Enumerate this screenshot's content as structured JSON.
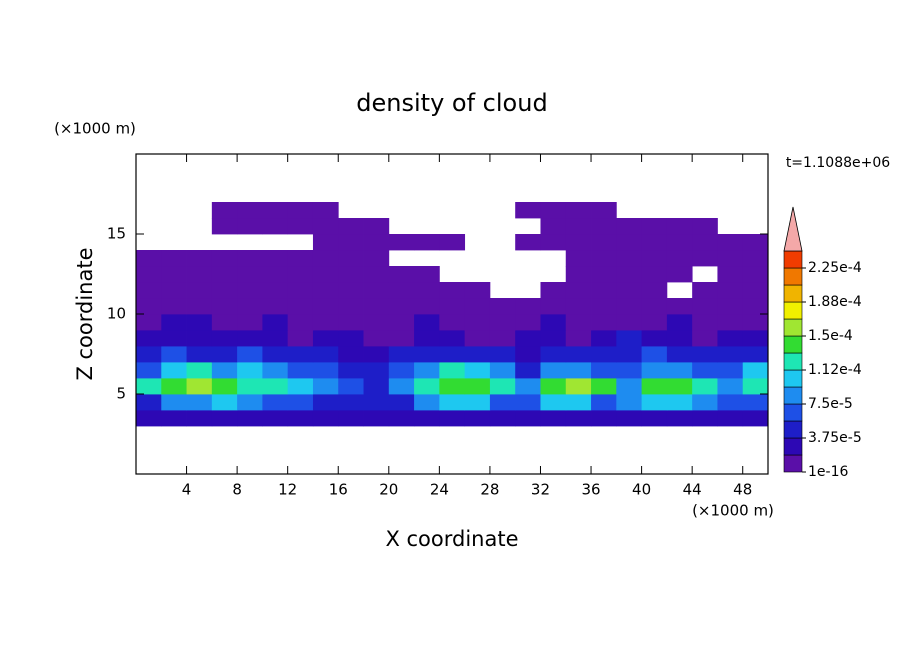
{
  "chart_data": {
    "type": "contour",
    "title": "density of cloud",
    "xlabel": "X coordinate",
    "ylabel": "Z coordinate",
    "xunit": "(×1000 m)",
    "yunit": "(×1000 m)",
    "annotation": "t=1.1088e+06",
    "xlim": [
      0,
      50
    ],
    "ylim": [
      0,
      20
    ],
    "xticks": [
      4,
      8,
      12,
      16,
      20,
      24,
      28,
      32,
      36,
      40,
      44,
      48
    ],
    "yticks": [
      5,
      10,
      15
    ],
    "x": [
      1,
      3,
      5,
      7,
      9,
      11,
      13,
      15,
      17,
      19,
      21,
      23,
      25,
      27,
      29,
      31,
      33,
      35,
      37,
      39,
      41,
      43,
      45,
      47,
      49
    ],
    "y": [
      3.5,
      4.5,
      5.5,
      6.5,
      7.5,
      8.5,
      9.5,
      10.5,
      11.5,
      12.5,
      13.5,
      14.5,
      15.5,
      16.5
    ],
    "values": [
      [
        2.5e-05,
        2.5e-05,
        2.5e-05,
        2.5e-05,
        2.5e-05,
        2.5e-05,
        2.5e-05,
        2.5e-05,
        2.5e-05,
        2.5e-05,
        2.5e-05,
        2.5e-05,
        2.5e-05,
        2.5e-05,
        2.5e-05,
        2.5e-05,
        2.5e-05,
        2.5e-05,
        2.5e-05,
        2.5e-05,
        2.5e-05,
        2.5e-05,
        2.5e-05,
        2.5e-05,
        2.5e-05
      ],
      [
        4.5e-05,
        8e-05,
        8e-05,
        0.0001,
        8e-05,
        6e-05,
        6e-05,
        4.5e-05,
        4.5e-05,
        4.5e-05,
        4.5e-05,
        8e-05,
        0.0001,
        0.0001,
        6e-05,
        6e-05,
        0.0001,
        0.0001,
        6e-05,
        8e-05,
        0.0001,
        0.0001,
        8e-05,
        6e-05,
        6e-05
      ],
      [
        0.00012,
        0.000135,
        0.00016,
        0.000135,
        0.00012,
        0.00012,
        0.0001,
        8e-05,
        6e-05,
        4.5e-05,
        8e-05,
        0.00012,
        0.000135,
        0.000135,
        0.00012,
        8e-05,
        0.000135,
        0.00016,
        0.000135,
        8e-05,
        0.000135,
        0.000135,
        0.00012,
        8e-05,
        0.00012
      ],
      [
        6e-05,
        0.0001,
        0.00012,
        8e-05,
        0.0001,
        8e-05,
        6e-05,
        6e-05,
        4.5e-05,
        4.5e-05,
        6e-05,
        8e-05,
        0.00012,
        0.0001,
        8e-05,
        4.5e-05,
        8e-05,
        8e-05,
        6e-05,
        6e-05,
        8e-05,
        8e-05,
        6e-05,
        6e-05,
        0.0001
      ],
      [
        4.5e-05,
        6e-05,
        4.5e-05,
        4.5e-05,
        6e-05,
        4.5e-05,
        4.5e-05,
        4.5e-05,
        2.5e-05,
        2.5e-05,
        4.5e-05,
        4.5e-05,
        4.5e-05,
        4.5e-05,
        4.5e-05,
        2.5e-05,
        4.5e-05,
        4.5e-05,
        4.5e-05,
        4.5e-05,
        6e-05,
        4.5e-05,
        4.5e-05,
        4.5e-05,
        4.5e-05
      ],
      [
        2.5e-05,
        2.5e-05,
        2.5e-05,
        2.5e-05,
        2.5e-05,
        2.5e-05,
        1e-05,
        2.5e-05,
        2.5e-05,
        1e-05,
        1e-05,
        2.5e-05,
        2.5e-05,
        1e-05,
        1e-05,
        2.5e-05,
        2.5e-05,
        1e-05,
        2.5e-05,
        4.5e-05,
        2.5e-05,
        2.5e-05,
        1e-05,
        2.5e-05,
        2.5e-05
      ],
      [
        1e-05,
        2.5e-05,
        2.5e-05,
        1e-05,
        1e-05,
        2.5e-05,
        1e-05,
        1e-05,
        1e-05,
        1e-05,
        1e-05,
        2.5e-05,
        1e-05,
        1e-05,
        1e-05,
        1e-05,
        2.5e-05,
        1e-05,
        1e-05,
        1e-05,
        1e-05,
        2.5e-05,
        1e-05,
        1e-05,
        1e-05
      ],
      [
        1e-05,
        1e-05,
        1e-05,
        1e-05,
        1e-05,
        1e-05,
        1e-05,
        1e-05,
        1e-05,
        1e-05,
        1e-05,
        1e-05,
        1e-05,
        1e-05,
        1e-05,
        1e-05,
        1e-05,
        1e-05,
        1e-05,
        1e-05,
        1e-05,
        1e-05,
        1e-05,
        1e-05,
        1e-05
      ],
      [
        1e-05,
        1e-05,
        1e-05,
        1e-05,
        1e-05,
        1e-05,
        1e-05,
        1e-05,
        1e-05,
        1e-05,
        1e-05,
        1e-05,
        1e-05,
        1e-05,
        null,
        null,
        1e-05,
        1e-05,
        1e-05,
        1e-05,
        1e-05,
        null,
        1e-05,
        1e-05,
        1e-05
      ],
      [
        1e-05,
        1e-05,
        1e-05,
        1e-05,
        1e-05,
        1e-05,
        1e-05,
        1e-05,
        1e-05,
        1e-05,
        1e-05,
        1e-05,
        null,
        null,
        null,
        null,
        null,
        1e-05,
        1e-05,
        1e-05,
        1e-05,
        1e-05,
        null,
        1e-05,
        1e-05
      ],
      [
        1e-05,
        1e-05,
        1e-05,
        1e-05,
        1e-05,
        1e-05,
        1e-05,
        1e-05,
        1e-05,
        1e-05,
        null,
        null,
        null,
        null,
        null,
        null,
        null,
        1e-05,
        1e-05,
        1e-05,
        1e-05,
        1e-05,
        1e-05,
        1e-05,
        1e-05
      ],
      [
        null,
        null,
        null,
        null,
        null,
        null,
        null,
        1e-05,
        1e-05,
        1e-05,
        1e-05,
        1e-05,
        1e-05,
        null,
        null,
        1e-05,
        1e-05,
        1e-05,
        1e-05,
        1e-05,
        1e-05,
        1e-05,
        1e-05,
        1e-05,
        1e-05
      ],
      [
        null,
        null,
        null,
        1e-05,
        1e-05,
        1e-05,
        1e-05,
        1e-05,
        1e-05,
        1e-05,
        null,
        null,
        null,
        null,
        null,
        null,
        1e-05,
        1e-05,
        1e-05,
        1e-05,
        1e-05,
        1e-05,
        1e-05,
        null,
        null
      ],
      [
        null,
        null,
        null,
        1e-05,
        1e-05,
        1e-05,
        1e-05,
        1e-05,
        null,
        null,
        null,
        null,
        null,
        null,
        null,
        1e-05,
        1e-05,
        1e-05,
        1e-05,
        null,
        null,
        null,
        null,
        null,
        null
      ]
    ],
    "levels": [
      1e-16,
      1.875e-05,
      3.75e-05,
      5.625e-05,
      7.5e-05,
      9.375e-05,
      0.0001125,
      0.00013125,
      0.00015,
      0.00016875,
      0.0001875,
      0.00020625,
      0.000225
    ],
    "colors": [
      "#5a0fa8",
      "#2d08b4",
      "#1e1ec8",
      "#1e50e6",
      "#1e8cf0",
      "#1ec8f0",
      "#1ee6b4",
      "#32dc32",
      "#a0e632",
      "#f0f000",
      "#f0b400",
      "#f07800",
      "#f03c00"
    ],
    "extend_color": "#f4a8a8",
    "colorbar_ticks": [
      1e-16,
      {
        "value": 3.75e-05,
        "label": "3.75e-5"
      },
      {
        "value": 7.5e-05,
        "label": "7.5e-5"
      },
      {
        "value": 0.0001125,
        "label": "1.12e-4"
      },
      {
        "value": 0.00015,
        "label": "1.5e-4"
      },
      {
        "value": 0.0001875,
        "label": "1.88e-4"
      },
      {
        "value": 0.000225,
        "label": "2.25e-4"
      }
    ]
  }
}
